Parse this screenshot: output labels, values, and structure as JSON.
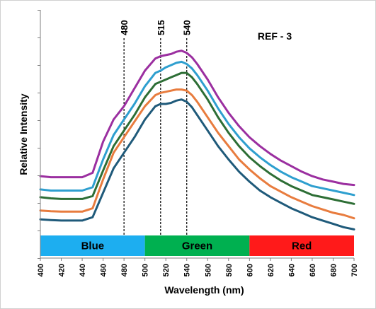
{
  "chart_data": {
    "type": "line",
    "title": "REF - 3",
    "xlabel": "Wavelength (nm)",
    "ylabel": "Relative Intensity",
    "xlim": [
      400,
      700
    ],
    "ylim": [
      0,
      10
    ],
    "x_ticks": [
      "400",
      "420",
      "440",
      "460",
      "480",
      "500",
      "520",
      "540",
      "560",
      "580",
      "600",
      "620",
      "640",
      "660",
      "680",
      "700"
    ],
    "grid": false,
    "legend": "none",
    "x": [
      400,
      410,
      420,
      430,
      440,
      450,
      460,
      470,
      480,
      490,
      500,
      510,
      515,
      520,
      525,
      530,
      535,
      540,
      545,
      550,
      560,
      570,
      580,
      590,
      600,
      610,
      620,
      630,
      640,
      650,
      660,
      670,
      680,
      690,
      700
    ],
    "series": [
      {
        "color": "#9b2fa0",
        "values": [
          2.45,
          2.4,
          2.4,
          2.4,
          2.4,
          2.6,
          4.0,
          5.0,
          5.6,
          6.4,
          7.2,
          7.75,
          7.85,
          7.9,
          7.95,
          8.05,
          8.1,
          8.0,
          7.8,
          7.5,
          6.8,
          6.0,
          5.3,
          4.7,
          4.2,
          3.8,
          3.45,
          3.15,
          2.9,
          2.65,
          2.45,
          2.3,
          2.2,
          2.1,
          2.05
        ]
      },
      {
        "color": "#2e9fcf",
        "values": [
          1.85,
          1.8,
          1.8,
          1.8,
          1.8,
          1.95,
          3.2,
          4.3,
          5.0,
          5.7,
          6.5,
          7.1,
          7.2,
          7.35,
          7.45,
          7.55,
          7.6,
          7.5,
          7.3,
          7.0,
          6.3,
          5.5,
          4.8,
          4.2,
          3.7,
          3.3,
          2.95,
          2.65,
          2.4,
          2.2,
          2.0,
          1.9,
          1.8,
          1.7,
          1.6
        ]
      },
      {
        "color": "#2d6e35",
        "values": [
          1.5,
          1.45,
          1.42,
          1.42,
          1.42,
          1.55,
          2.7,
          3.8,
          4.5,
          5.2,
          6.0,
          6.6,
          6.7,
          6.8,
          6.9,
          7.0,
          7.1,
          7.1,
          6.9,
          6.6,
          5.9,
          5.1,
          4.4,
          3.8,
          3.3,
          2.9,
          2.55,
          2.25,
          2.0,
          1.8,
          1.6,
          1.5,
          1.4,
          1.3,
          1.2
        ]
      },
      {
        "color": "#e87c3e",
        "values": [
          0.9,
          0.87,
          0.85,
          0.85,
          0.85,
          1.0,
          2.3,
          3.5,
          4.2,
          4.9,
          5.6,
          6.1,
          6.2,
          6.25,
          6.3,
          6.35,
          6.35,
          6.3,
          6.1,
          5.8,
          5.1,
          4.4,
          3.8,
          3.2,
          2.75,
          2.35,
          2.0,
          1.75,
          1.5,
          1.3,
          1.1,
          0.95,
          0.8,
          0.7,
          0.55
        ]
      },
      {
        "color": "#1f5a7a",
        "values": [
          0.5,
          0.47,
          0.45,
          0.45,
          0.45,
          0.6,
          1.7,
          2.8,
          3.5,
          4.2,
          5.0,
          5.6,
          5.7,
          5.7,
          5.75,
          5.85,
          5.9,
          5.8,
          5.55,
          5.2,
          4.5,
          3.8,
          3.2,
          2.65,
          2.2,
          1.8,
          1.5,
          1.25,
          1.0,
          0.8,
          0.6,
          0.45,
          0.3,
          0.15,
          0.05
        ]
      }
    ],
    "markers": [
      {
        "label": "480",
        "x": 480
      },
      {
        "label": "515",
        "x": 515
      },
      {
        "label": "540",
        "x": 540
      }
    ],
    "bands": [
      {
        "label": "Blue",
        "x_start": 400,
        "x_end": 500,
        "color": "#1daef0"
      },
      {
        "label": "Green",
        "x_start": 500,
        "x_end": 600,
        "color": "#00b050"
      },
      {
        "label": "Red",
        "x_start": 600,
        "x_end": 700,
        "color": "#ff1a1a"
      }
    ]
  }
}
